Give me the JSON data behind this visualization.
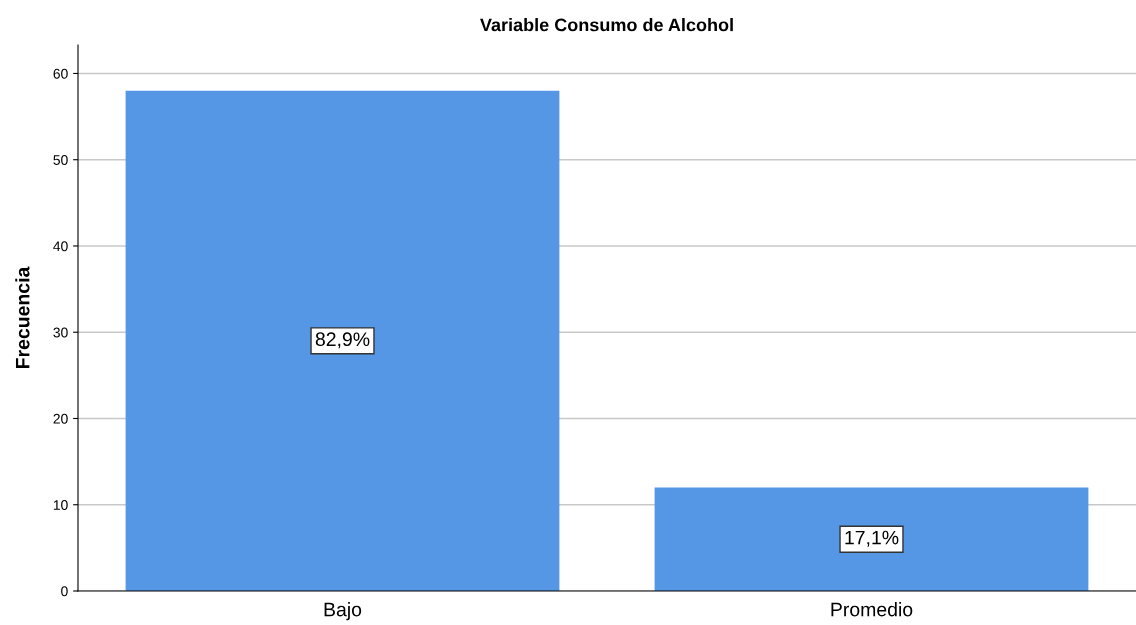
{
  "chart_data": {
    "type": "bar",
    "title": "Variable Consumo de Alcohol",
    "ylabel": "Frecuencia",
    "categories": [
      "Bajo",
      "Promedio"
    ],
    "values": [
      58,
      12
    ],
    "color": "#5596e5",
    "annotations": [
      "82,9%",
      "17,1%"
    ],
    "ylim": [
      0,
      63.3
    ],
    "yticks": [
      0,
      10,
      20,
      30,
      40,
      50,
      60
    ],
    "grid": "y",
    "legend": false
  }
}
